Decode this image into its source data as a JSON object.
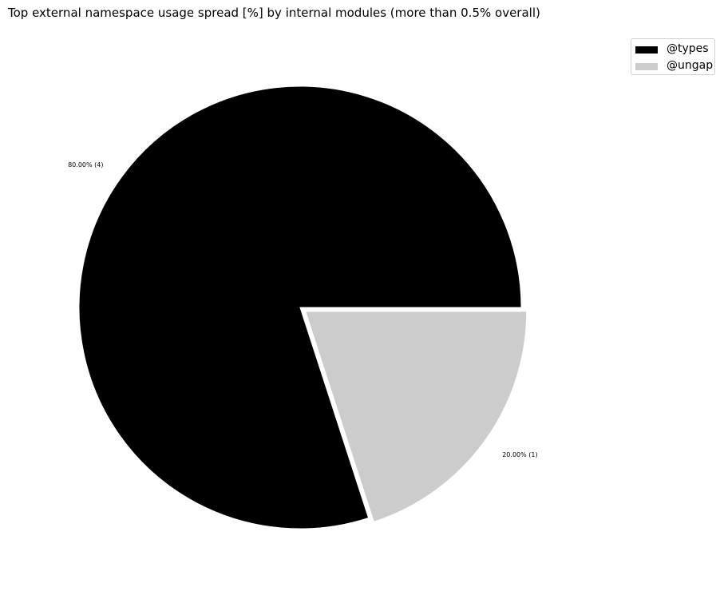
{
  "chart_data": {
    "type": "pie",
    "title": "Top external namespace usage spread [%] by internal modules (more than 0.5% overall)",
    "slices": [
      {
        "name": "@types",
        "value": 80.0,
        "count": 4,
        "label": "80.00% (4)",
        "color": "#000000"
      },
      {
        "name": "@ungap",
        "value": 20.0,
        "count": 1,
        "label": "20.00% (1)",
        "color": "#cccccc"
      }
    ],
    "legend": {
      "placement": "top-right",
      "entries": [
        "@types",
        "@ungap"
      ]
    }
  }
}
